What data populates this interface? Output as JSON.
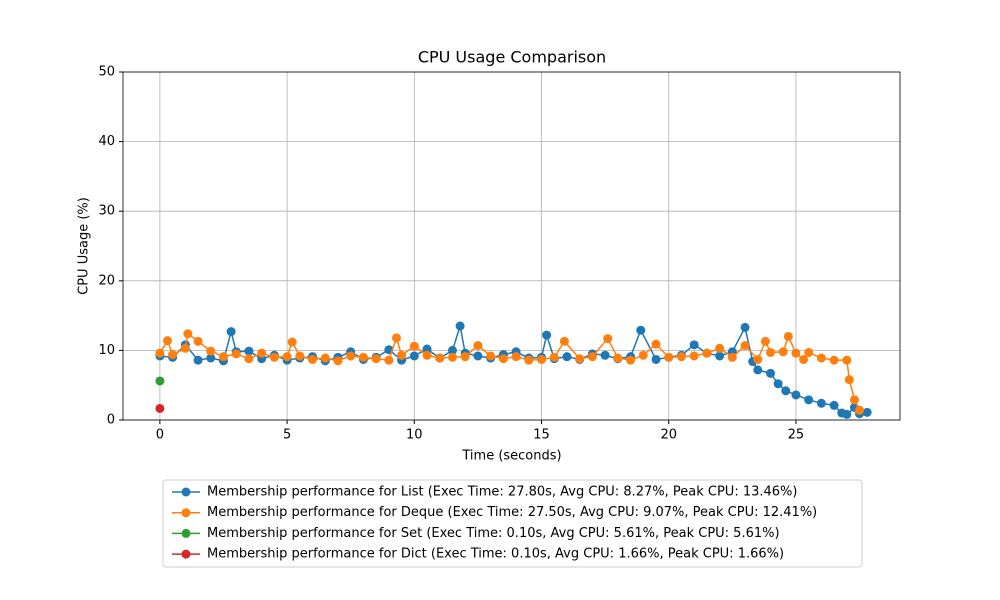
{
  "chart_data": {
    "type": "line",
    "title": "CPU Usage Comparison",
    "x_label": "Time (seconds)",
    "y_label": "CPU Usage (%)",
    "xlim": [
      -1.45,
      29.09
    ],
    "ylim": [
      0,
      50
    ],
    "xticks": [
      0,
      5,
      10,
      15,
      20,
      25
    ],
    "yticks": [
      0,
      10,
      20,
      30,
      40,
      50
    ],
    "grid": true,
    "legend": "below",
    "series": [
      {
        "name": "Membership performance for List (Exec Time: 27.80s, Avg CPU: 8.27%, Peak CPU: 13.46%)",
        "color": "#1f77b4",
        "x": [
          0,
          0.5,
          1,
          1.5,
          2,
          2.5,
          2.8,
          3,
          3.5,
          4,
          4.5,
          5,
          5.5,
          6,
          6.5,
          7,
          7.5,
          8,
          8.5,
          9,
          9.5,
          10,
          10.5,
          11,
          11.5,
          11.8,
          12,
          12.5,
          13,
          13.5,
          14,
          14.5,
          15,
          15.2,
          15.5,
          16,
          16.5,
          17,
          17.5,
          18,
          18.5,
          18.9,
          19.5,
          20,
          20.5,
          21,
          21.5,
          22,
          22.5,
          23,
          23.3,
          23.5,
          24,
          24.3,
          24.6,
          25,
          25.5,
          26,
          26.5,
          26.8,
          27,
          27.3,
          27.5,
          27.8
        ],
        "values": [
          9.2,
          9.0,
          10.8,
          8.6,
          8.9,
          8.5,
          12.7,
          9.8,
          9.9,
          8.8,
          9.3,
          8.6,
          8.9,
          9.1,
          8.5,
          9.0,
          9.8,
          8.7,
          9.0,
          10.1,
          8.6,
          9.2,
          10.2,
          8.9,
          10.0,
          13.5,
          9.6,
          9.2,
          8.9,
          9.4,
          9.8,
          8.9,
          9.0,
          12.2,
          8.8,
          9.1,
          8.7,
          9.5,
          9.3,
          8.8,
          9.1,
          12.9,
          8.7,
          9.0,
          9.3,
          10.8,
          9.6,
          9.2,
          9.8,
          13.3,
          8.4,
          7.2,
          6.7,
          5.2,
          4.2,
          3.6,
          2.9,
          2.4,
          2.1,
          1.0,
          0.8,
          1.8,
          0.9,
          1.1
        ]
      },
      {
        "name": "Membership performance for Deque (Exec Time: 27.50s, Avg CPU: 9.07%, Peak CPU: 12.41%)",
        "color": "#ff7f0e",
        "x": [
          0,
          0.3,
          0.5,
          1,
          1.1,
          1.5,
          2,
          2.5,
          3,
          3.5,
          4,
          4.5,
          5,
          5.2,
          5.5,
          6,
          6.5,
          7,
          7.5,
          8,
          8.5,
          9,
          9.3,
          9.5,
          10,
          10.5,
          11,
          11.5,
          12,
          12.5,
          13,
          13.5,
          14,
          14.5,
          15,
          15.5,
          15.9,
          16.5,
          17,
          17.6,
          18,
          18.5,
          19,
          19.5,
          20,
          20.5,
          21,
          21.5,
          22,
          22.5,
          23,
          23.5,
          23.8,
          24,
          24.5,
          24.7,
          25,
          25.3,
          25.5,
          26,
          26.5,
          27,
          27.1,
          27.3,
          27.5
        ],
        "values": [
          9.6,
          11.4,
          9.4,
          10.3,
          12.4,
          11.3,
          9.9,
          9.1,
          9.5,
          8.8,
          9.6,
          9.0,
          9.1,
          11.2,
          9.2,
          8.7,
          8.9,
          8.5,
          9.2,
          9.0,
          8.8,
          8.6,
          11.8,
          9.3,
          10.6,
          9.3,
          8.9,
          9.0,
          9.1,
          10.7,
          9.2,
          8.8,
          9.1,
          8.6,
          8.7,
          9.0,
          11.3,
          8.8,
          9.1,
          11.7,
          8.9,
          8.6,
          9.3,
          10.9,
          9.0,
          9.1,
          9.2,
          9.6,
          10.3,
          9.0,
          10.7,
          8.7,
          11.3,
          9.7,
          9.8,
          12.0,
          9.6,
          8.7,
          9.7,
          8.9,
          8.6,
          8.6,
          5.8,
          2.9,
          1.4
        ]
      },
      {
        "name": "Membership performance for Set (Exec Time: 0.10s, Avg CPU: 5.61%, Peak CPU: 5.61%)",
        "color": "#2ca02c",
        "x": [
          0
        ],
        "values": [
          5.61
        ]
      },
      {
        "name": "Membership performance for Dict (Exec Time: 0.10s, Avg CPU: 1.66%, Peak CPU: 1.66%)",
        "color": "#d62728",
        "x": [
          0
        ],
        "values": [
          1.66
        ]
      }
    ]
  }
}
